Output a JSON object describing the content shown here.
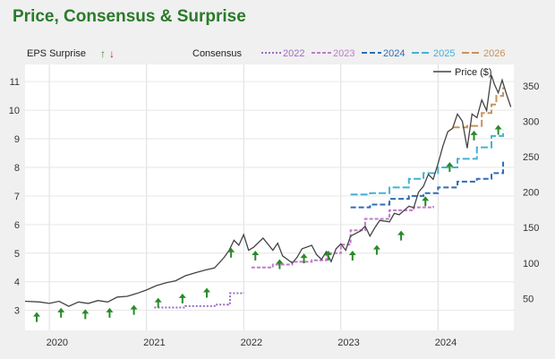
{
  "chart_data": {
    "type": "line",
    "title": "Price, Consensus & Surprise",
    "eps_surprise_label": "EPS Surprise",
    "consensus_label": "Consensus",
    "x_ticks": [
      "2020",
      "2021",
      "2022",
      "2023",
      "2024"
    ],
    "left_axis": {
      "ticks": [
        3,
        4,
        5,
        6,
        7,
        8,
        9,
        10,
        11
      ],
      "ylim": [
        2.3,
        11.6
      ]
    },
    "right_axis": {
      "ticks": [
        50,
        100,
        150,
        200,
        250,
        300,
        350
      ],
      "ylim": [
        5,
        380
      ]
    },
    "price": {
      "name": "Price ($)",
      "color": "#444444",
      "points": [
        [
          2019.75,
          46
        ],
        [
          2019.9,
          45
        ],
        [
          2020.0,
          43
        ],
        [
          2020.1,
          46
        ],
        [
          2020.2,
          39
        ],
        [
          2020.3,
          45
        ],
        [
          2020.4,
          43
        ],
        [
          2020.5,
          47
        ],
        [
          2020.6,
          45
        ],
        [
          2020.7,
          52
        ],
        [
          2020.8,
          53
        ],
        [
          2020.9,
          57
        ],
        [
          2021.0,
          62
        ],
        [
          2021.1,
          68
        ],
        [
          2021.2,
          72
        ],
        [
          2021.3,
          75
        ],
        [
          2021.4,
          82
        ],
        [
          2021.5,
          86
        ],
        [
          2021.6,
          90
        ],
        [
          2021.7,
          93
        ],
        [
          2021.8,
          108
        ],
        [
          2021.85,
          118
        ],
        [
          2021.9,
          132
        ],
        [
          2021.95,
          125
        ],
        [
          2022.0,
          140
        ],
        [
          2022.05,
          118
        ],
        [
          2022.1,
          122
        ],
        [
          2022.2,
          135
        ],
        [
          2022.3,
          118
        ],
        [
          2022.35,
          128
        ],
        [
          2022.4,
          110
        ],
        [
          2022.5,
          100
        ],
        [
          2022.55,
          108
        ],
        [
          2022.6,
          120
        ],
        [
          2022.7,
          125
        ],
        [
          2022.75,
          112
        ],
        [
          2022.8,
          105
        ],
        [
          2022.85,
          116
        ],
        [
          2022.9,
          102
        ],
        [
          2022.95,
          120
        ],
        [
          2023.0,
          127
        ],
        [
          2023.05,
          118
        ],
        [
          2023.1,
          138
        ],
        [
          2023.2,
          145
        ],
        [
          2023.25,
          152
        ],
        [
          2023.3,
          138
        ],
        [
          2023.35,
          150
        ],
        [
          2023.4,
          160
        ],
        [
          2023.5,
          158
        ],
        [
          2023.55,
          170
        ],
        [
          2023.6,
          168
        ],
        [
          2023.7,
          180
        ],
        [
          2023.75,
          178
        ],
        [
          2023.8,
          200
        ],
        [
          2023.85,
          208
        ],
        [
          2023.9,
          225
        ],
        [
          2023.95,
          218
        ],
        [
          2024.0,
          240
        ],
        [
          2024.05,
          265
        ],
        [
          2024.1,
          285
        ],
        [
          2024.15,
          290
        ],
        [
          2024.2,
          310
        ],
        [
          2024.25,
          300
        ],
        [
          2024.3,
          262
        ],
        [
          2024.35,
          310
        ],
        [
          2024.4,
          305
        ],
        [
          2024.45,
          330
        ],
        [
          2024.5,
          315
        ],
        [
          2024.55,
          365
        ],
        [
          2024.58,
          352
        ],
        [
          2024.62,
          340
        ],
        [
          2024.66,
          358
        ],
        [
          2024.7,
          340
        ],
        [
          2024.75,
          320
        ]
      ]
    },
    "consensus": [
      {
        "name": "2022",
        "color": "#9c6bc4",
        "dash": "2,2",
        "points": [
          [
            2021.08,
            3.1
          ],
          [
            2021.4,
            3.15
          ],
          [
            2021.7,
            3.2
          ],
          [
            2021.84,
            3.25
          ],
          [
            2021.86,
            3.6
          ],
          [
            2022.0,
            3.62
          ]
        ]
      },
      {
        "name": "2023",
        "color": "#c07ac9",
        "dash": "4,2",
        "points": [
          [
            2022.08,
            4.5
          ],
          [
            2022.3,
            4.6
          ],
          [
            2022.5,
            4.7
          ],
          [
            2022.7,
            4.75
          ],
          [
            2022.85,
            5.0
          ],
          [
            2023.0,
            5.3
          ],
          [
            2023.1,
            5.8
          ],
          [
            2023.25,
            6.2
          ],
          [
            2023.5,
            6.5
          ],
          [
            2023.75,
            6.6
          ],
          [
            2023.95,
            6.65
          ]
        ]
      },
      {
        "name": "2024",
        "color": "#2d6db5",
        "dash": "6,3",
        "points": [
          [
            2023.1,
            6.6
          ],
          [
            2023.3,
            6.7
          ],
          [
            2023.5,
            6.9
          ],
          [
            2023.7,
            7.0
          ],
          [
            2023.85,
            7.1
          ],
          [
            2024.0,
            7.3
          ],
          [
            2024.2,
            7.5
          ],
          [
            2024.4,
            7.6
          ],
          [
            2024.55,
            7.8
          ],
          [
            2024.67,
            8.2
          ]
        ]
      },
      {
        "name": "2025",
        "color": "#45b0d8",
        "dash": "8,3",
        "points": [
          [
            2023.1,
            7.05
          ],
          [
            2023.3,
            7.1
          ],
          [
            2023.5,
            7.3
          ],
          [
            2023.7,
            7.6
          ],
          [
            2023.85,
            7.8
          ],
          [
            2024.0,
            8.0
          ],
          [
            2024.2,
            8.3
          ],
          [
            2024.4,
            8.7
          ],
          [
            2024.55,
            9.1
          ],
          [
            2024.67,
            9.3
          ]
        ]
      },
      {
        "name": "2026",
        "color": "#c8935a",
        "dash": "8,3",
        "points": [
          [
            2024.15,
            9.4
          ],
          [
            2024.3,
            9.45
          ],
          [
            2024.45,
            9.9
          ],
          [
            2024.55,
            10.2
          ],
          [
            2024.6,
            10.5
          ],
          [
            2024.67,
            10.8
          ]
        ]
      }
    ],
    "surprise_arrows": {
      "positive_color": "#2a8a2a",
      "negative_color": "#d02020",
      "points": [
        [
          2019.87,
          2.75
        ],
        [
          2020.12,
          2.9
        ],
        [
          2020.37,
          2.85
        ],
        [
          2020.62,
          2.9
        ],
        [
          2020.87,
          3.0
        ],
        [
          2021.12,
          3.25
        ],
        [
          2021.37,
          3.4
        ],
        [
          2021.62,
          3.6
        ],
        [
          2021.87,
          5.0
        ],
        [
          2022.12,
          4.9
        ],
        [
          2022.37,
          4.6
        ],
        [
          2022.62,
          4.8
        ],
        [
          2022.87,
          4.9
        ],
        [
          2023.12,
          4.9
        ],
        [
          2023.37,
          5.1
        ],
        [
          2023.62,
          5.6
        ],
        [
          2023.87,
          6.8
        ],
        [
          2024.12,
          8.0
        ],
        [
          2024.37,
          9.1
        ],
        [
          2024.62,
          9.3
        ]
      ]
    }
  }
}
